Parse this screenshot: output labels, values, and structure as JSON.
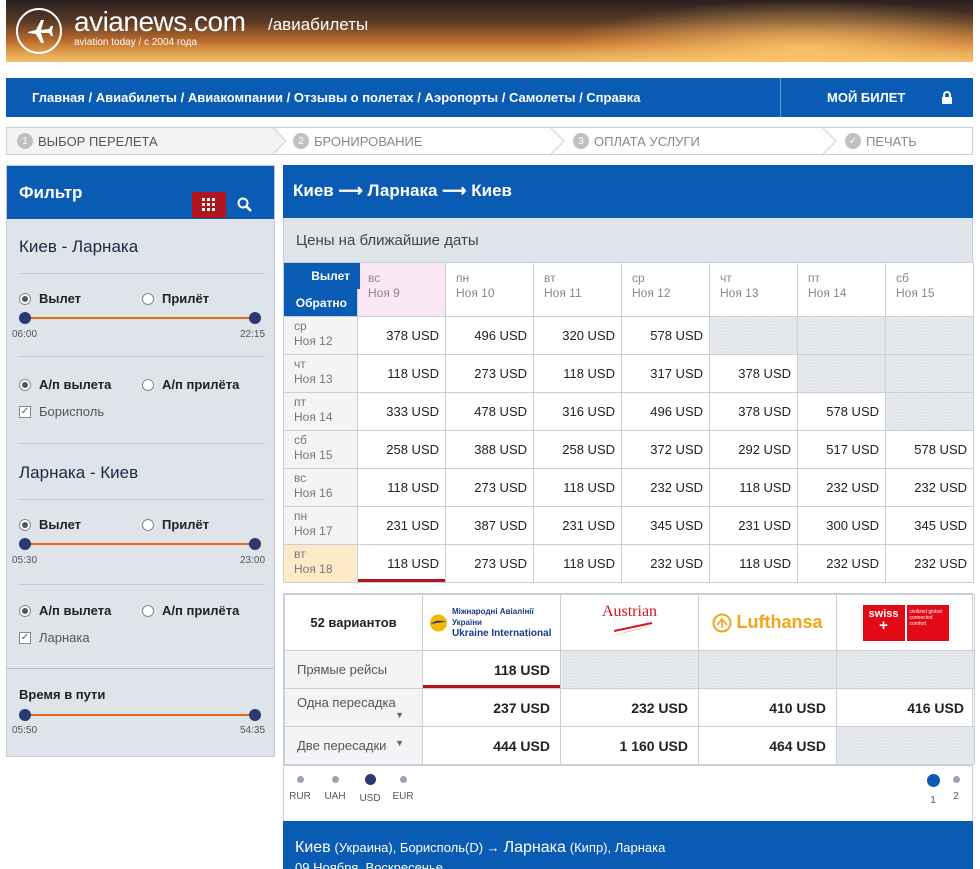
{
  "header": {
    "site_name": "avianews.com",
    "site_section": "/авиабилеты",
    "tagline": "aviation today / с 2004 года"
  },
  "nav": {
    "links": [
      "Главная",
      "Авиабилеты",
      "Авиакомпании",
      "Отзывы о полетах",
      "Аэропорты",
      "Самолеты",
      "Справка"
    ],
    "my_ticket": "МОЙ БИЛЕТ"
  },
  "steps": [
    {
      "num": "1",
      "label": "ВЫБОР ПЕРЕЛЕТА"
    },
    {
      "num": "2",
      "label": "БРОНИРОВАНИЕ"
    },
    {
      "num": "3",
      "label": "ОПЛАТА УСЛУГИ"
    },
    {
      "num": "✓",
      "label": "ПЕЧАТЬ"
    }
  ],
  "filter": {
    "title": "Фильтр",
    "route1": {
      "title": "Киев - Ларнака",
      "depart": "Вылет",
      "arrive": "Прилёт",
      "time_min": "06:00",
      "time_max": "22:15",
      "airline_dep": "А/п вылета",
      "airline_arr": "А/п прилёта",
      "airport": "Борисполь"
    },
    "route2": {
      "title": "Ларнака - Киев",
      "depart": "Вылет",
      "arrive": "Прилёт",
      "time_min": "05:30",
      "time_max": "23:00",
      "airline_dep": "А/п вылета",
      "airline_arr": "А/п прилёта",
      "airport": "Ларнака"
    },
    "duration": {
      "title": "Время в пути",
      "min": "05:50",
      "max": "54:35"
    }
  },
  "main": {
    "route": "Киев ⟶ Ларнака ⟶ Киев",
    "dates_title": "Цены на ближайшие даты",
    "corner_depart": "Вылет",
    "corner_return": "Обратно",
    "columns": [
      {
        "dow": "вс",
        "date": "Ноя 9"
      },
      {
        "dow": "пн",
        "date": "Ноя 10"
      },
      {
        "dow": "вт",
        "date": "Ноя 11"
      },
      {
        "dow": "ср",
        "date": "Ноя 12"
      },
      {
        "dow": "чт",
        "date": "Ноя 13"
      },
      {
        "dow": "пт",
        "date": "Ноя 14"
      },
      {
        "dow": "сб",
        "date": "Ноя 15"
      }
    ],
    "rows": [
      {
        "dow": "ср",
        "date": "Ноя 12",
        "prices": [
          "378 USD",
          "496 USD",
          "320 USD",
          "578 USD",
          "",
          "",
          ""
        ]
      },
      {
        "dow": "чт",
        "date": "Ноя 13",
        "prices": [
          "118 USD",
          "273 USD",
          "118 USD",
          "317 USD",
          "378 USD",
          "",
          ""
        ]
      },
      {
        "dow": "пт",
        "date": "Ноя 14",
        "prices": [
          "333 USD",
          "478 USD",
          "316 USD",
          "496 USD",
          "378 USD",
          "578 USD",
          ""
        ]
      },
      {
        "dow": "сб",
        "date": "Ноя 15",
        "prices": [
          "258 USD",
          "388 USD",
          "258 USD",
          "372 USD",
          "292 USD",
          "517 USD",
          "578 USD"
        ]
      },
      {
        "dow": "вс",
        "date": "Ноя 16",
        "prices": [
          "118 USD",
          "273 USD",
          "118 USD",
          "232 USD",
          "118 USD",
          "232 USD",
          "232 USD"
        ]
      },
      {
        "dow": "пн",
        "date": "Ноя 17",
        "prices": [
          "231 USD",
          "387 USD",
          "231 USD",
          "345 USD",
          "231 USD",
          "300 USD",
          "345 USD"
        ]
      },
      {
        "dow": "вт",
        "date": "Ноя 18",
        "prices": [
          "118 USD",
          "273 USD",
          "118 USD",
          "232 USD",
          "118 USD",
          "232 USD",
          "232 USD"
        ]
      }
    ]
  },
  "airlines": {
    "variants": "52 вариантов",
    "logos": [
      {
        "name_line1": "Міжнародні Авіалінії України",
        "name_line2": "Ukraine International"
      },
      {
        "name": "Austrian"
      },
      {
        "name": "Lufthansa"
      },
      {
        "name": "swiss",
        "extra": "civilized global connected comfort"
      }
    ],
    "rows": [
      {
        "label": "Прямые рейсы",
        "prices": [
          "118 USD",
          "",
          "",
          ""
        ]
      },
      {
        "label": "Одна пересадка",
        "prices": [
          "237 USD",
          "232 USD",
          "410 USD",
          "416 USD"
        ]
      },
      {
        "label": "Две пересадки",
        "prices": [
          "444 USD",
          "1 160 USD",
          "464 USD",
          ""
        ]
      }
    ]
  },
  "currency": {
    "options": [
      "RUR",
      "UAH",
      "USD",
      "EUR"
    ],
    "selected": "USD",
    "pages": [
      "1",
      "2"
    ]
  },
  "flight": {
    "from_city": "Киев",
    "from_country": "(Украина), Борисполь(D) →",
    "to_city": "Ларнака",
    "to_country": "(Кипр), Ларнака",
    "date": "09 Ноября, Воскресенье"
  },
  "colors": {
    "primary": "#0a5bb4",
    "accent": "#e36a1b",
    "selected_dark": "#2a3a72"
  }
}
